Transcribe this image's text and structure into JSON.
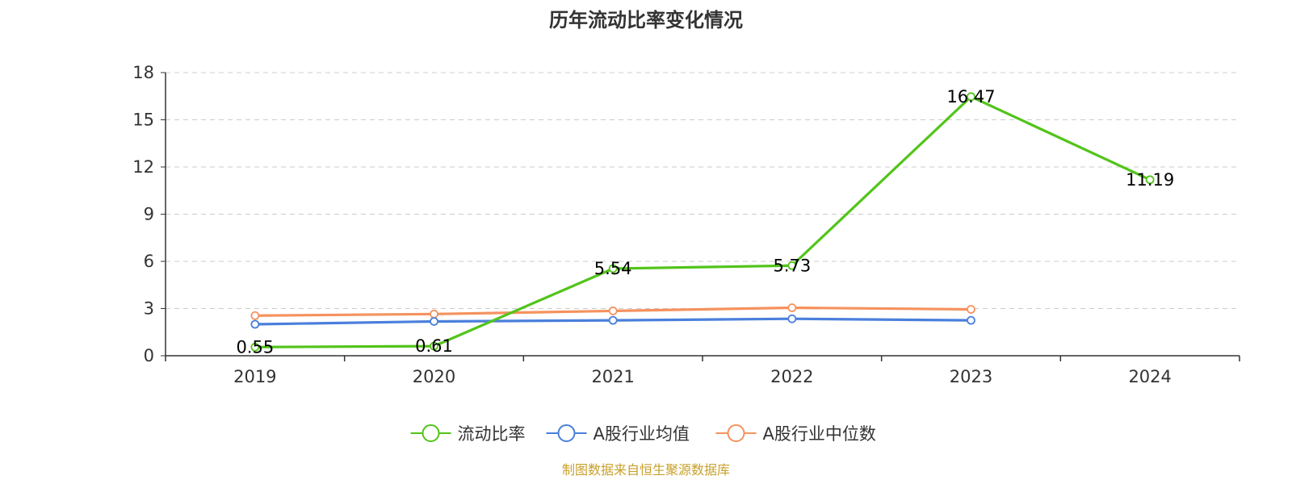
{
  "chart_data": {
    "type": "line",
    "title": "历年流动比率变化情况",
    "xlabel": "",
    "ylabel": "",
    "categories": [
      "2019",
      "2020",
      "2021",
      "2022",
      "2023",
      "2024"
    ],
    "ylim": [
      0,
      18
    ],
    "yticks": [
      0,
      3,
      6,
      9,
      12,
      15,
      18
    ],
    "grid": true,
    "legend_position": "bottom",
    "series": [
      {
        "name": "流动比率",
        "color": "#52c41a",
        "values": [
          0.55,
          0.61,
          5.54,
          5.73,
          16.47,
          11.19
        ],
        "labels": [
          "0.55",
          "0.61",
          "5.54",
          "5.73",
          "16.47",
          "11.19"
        ]
      },
      {
        "name": "A股行业均值",
        "color": "#4a7fdc",
        "values": [
          2.0,
          2.18,
          2.25,
          2.35,
          2.25,
          null
        ]
      },
      {
        "name": "A股行业中位数",
        "color": "#f5925e",
        "values": [
          2.55,
          2.65,
          2.85,
          3.05,
          2.95,
          null
        ]
      }
    ]
  },
  "source": {
    "text": "制图数据来自恒生聚源数据库",
    "color": "#c8a02a"
  }
}
